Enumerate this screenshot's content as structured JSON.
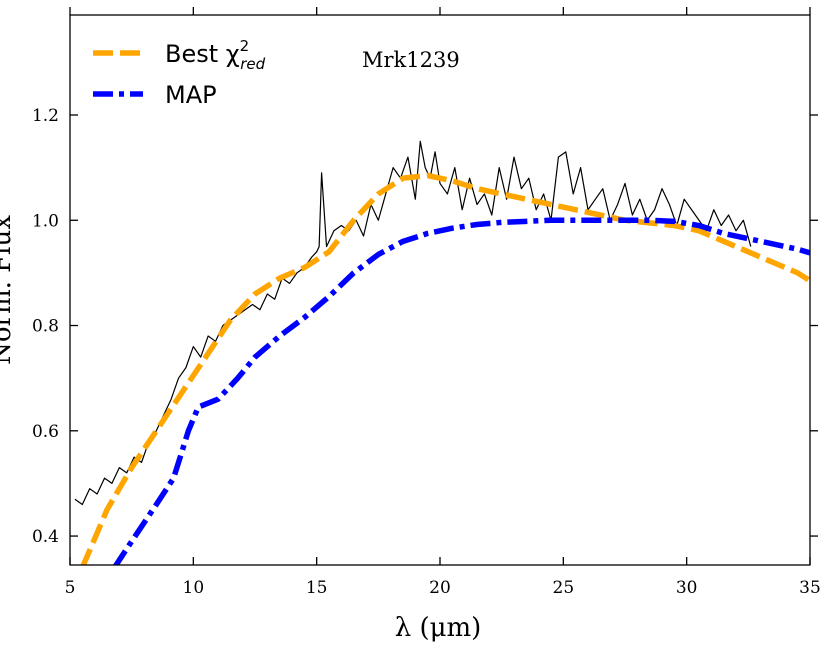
{
  "chart_data": {
    "type": "line",
    "title": "",
    "annotation": "Mrk1239",
    "xlabel": "λ (μm)",
    "ylabel": "Norm. Flux",
    "xlim": [
      5,
      35
    ],
    "ylim": [
      0.345,
      1.39
    ],
    "xticks": [
      5,
      10,
      15,
      20,
      25,
      30,
      35
    ],
    "xtick_labels": [
      "5",
      "10",
      "15",
      "20",
      "25",
      "30",
      "35"
    ],
    "yticks": [
      0.4,
      0.6,
      0.8,
      1.0,
      1.2
    ],
    "ytick_labels": [
      "0.4",
      "0.6",
      "0.8",
      "1.0",
      "1.2"
    ],
    "grid": false,
    "legend_position": "top-left",
    "legend": [
      {
        "label_main": "Best χ",
        "label_sup": "2",
        "label_sub": "red",
        "series": "best_fit"
      },
      {
        "label_main": "MAP",
        "series": "map"
      }
    ],
    "colors": {
      "observed": "#000000",
      "best_fit": "#FFA500",
      "map": "#0000FF"
    },
    "series": [
      {
        "name": "observed",
        "style": "solid-thin",
        "x": [
          5.2,
          5.5,
          5.8,
          6.1,
          6.4,
          6.7,
          7.0,
          7.3,
          7.6,
          7.9,
          8.2,
          8.5,
          8.8,
          9.1,
          9.4,
          9.7,
          10.0,
          10.3,
          10.6,
          10.9,
          11.2,
          11.5,
          11.8,
          12.1,
          12.4,
          12.7,
          13.0,
          13.3,
          13.6,
          13.9,
          14.2,
          14.5,
          14.8,
          15.0,
          15.1,
          15.2,
          15.4,
          15.7,
          16.0,
          16.3,
          16.6,
          16.9,
          17.2,
          17.5,
          17.8,
          18.1,
          18.4,
          18.7,
          19.0,
          19.2,
          19.4,
          19.6,
          19.8,
          20.0,
          20.3,
          20.6,
          20.9,
          21.2,
          21.5,
          21.8,
          22.1,
          22.4,
          22.7,
          23.0,
          23.3,
          23.6,
          23.9,
          24.2,
          24.5,
          24.8,
          25.1,
          25.4,
          25.7,
          26.0,
          26.3,
          26.6,
          26.9,
          27.2,
          27.5,
          27.8,
          28.1,
          28.4,
          28.7,
          29.0,
          29.3,
          29.6,
          29.9,
          30.2,
          30.5,
          30.8,
          31.1,
          31.4,
          31.7,
          32.0,
          32.3,
          32.6
        ],
        "y": [
          0.47,
          0.46,
          0.49,
          0.48,
          0.51,
          0.5,
          0.53,
          0.52,
          0.55,
          0.54,
          0.58,
          0.6,
          0.63,
          0.66,
          0.7,
          0.72,
          0.76,
          0.74,
          0.78,
          0.77,
          0.8,
          0.81,
          0.82,
          0.83,
          0.84,
          0.83,
          0.86,
          0.85,
          0.89,
          0.88,
          0.9,
          0.91,
          0.93,
          0.94,
          0.95,
          1.09,
          0.95,
          0.98,
          0.99,
          0.98,
          1.0,
          0.97,
          1.03,
          1.0,
          1.05,
          1.1,
          1.08,
          1.12,
          1.04,
          1.15,
          1.1,
          1.08,
          1.13,
          1.07,
          1.05,
          1.1,
          1.02,
          1.08,
          1.03,
          1.05,
          1.01,
          1.1,
          1.04,
          1.12,
          1.06,
          1.08,
          1.02,
          1.05,
          1.0,
          1.12,
          1.13,
          1.05,
          1.1,
          1.02,
          1.04,
          1.06,
          1.0,
          1.03,
          1.07,
          1.01,
          1.04,
          1.0,
          1.02,
          1.06,
          1.03,
          0.99,
          1.04,
          1.02,
          1.0,
          0.98,
          1.02,
          0.99,
          1.01,
          0.98,
          1.0,
          0.95
        ]
      },
      {
        "name": "best_fit",
        "style": "dashed",
        "x": [
          5.5,
          6.5,
          7.5,
          8.5,
          9.5,
          10.5,
          11.5,
          12.5,
          13.5,
          14.5,
          15.5,
          16.5,
          17.5,
          18.5,
          19.5,
          20.5,
          21.5,
          22.5,
          23.5,
          24.5,
          25.5,
          26.5,
          27.5,
          28.5,
          29.5,
          30.5,
          31.5,
          32.5,
          33.5,
          34.5,
          35.0
        ],
        "y": [
          0.34,
          0.45,
          0.53,
          0.6,
          0.67,
          0.74,
          0.81,
          0.86,
          0.89,
          0.91,
          0.94,
          1.0,
          1.05,
          1.08,
          1.085,
          1.075,
          1.06,
          1.05,
          1.04,
          1.03,
          1.02,
          1.01,
          1.0,
          0.995,
          0.99,
          0.98,
          0.96,
          0.94,
          0.92,
          0.9,
          0.885
        ]
      },
      {
        "name": "map",
        "style": "dashdot",
        "x": [
          6.8,
          7.5,
          8.5,
          9.2,
          9.8,
          10.2,
          11.0,
          11.8,
          12.5,
          13.5,
          14.5,
          15.5,
          16.5,
          17.5,
          18.5,
          19.5,
          20.5,
          21.5,
          22.5,
          23.5,
          24.5,
          25.5,
          26.5,
          27.5,
          28.5,
          29.5,
          30.5,
          31.5,
          32.5,
          33.5,
          34.5,
          35.0
        ],
        "y": [
          0.34,
          0.39,
          0.46,
          0.51,
          0.6,
          0.645,
          0.66,
          0.7,
          0.74,
          0.78,
          0.815,
          0.855,
          0.9,
          0.935,
          0.96,
          0.975,
          0.985,
          0.992,
          0.996,
          0.998,
          1.0,
          1.0,
          1.0,
          1.0,
          1.0,
          0.998,
          0.99,
          0.975,
          0.965,
          0.955,
          0.945,
          0.938
        ]
      }
    ]
  }
}
